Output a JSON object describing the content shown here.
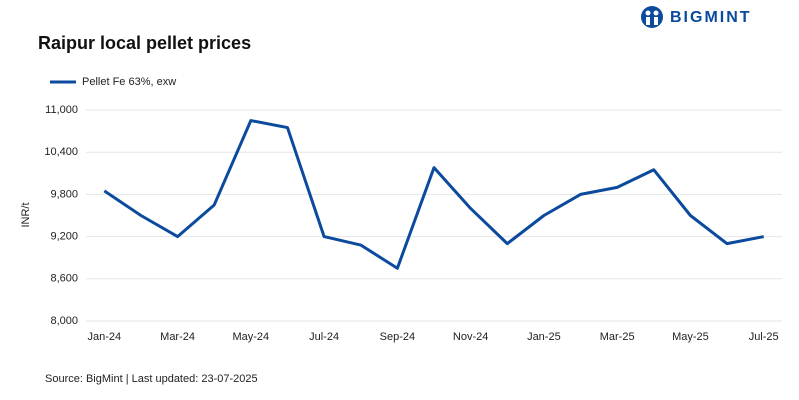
{
  "brand": "BIGMINT",
  "chart_data": {
    "type": "line",
    "title": "Raipur local pellet prices",
    "y_label": "INR/t",
    "source": "Source: BigMint | Last updated: 23-07-2025",
    "categories": [
      "Jan-24",
      null,
      "Mar-24",
      null,
      "May-24",
      null,
      "Jul-24",
      null,
      "Sep-24",
      null,
      "Nov-24",
      null,
      "Jan-25",
      null,
      "Mar-25",
      null,
      "May-25",
      null,
      "Jul-25"
    ],
    "series": [
      {
        "name": "Pellet Fe 63%, exw",
        "color": "#0b4a9c",
        "values": [
          9850,
          9500,
          9200,
          9650,
          10850,
          10750,
          9200,
          9080,
          8750,
          10180,
          9600,
          9100,
          9500,
          9800,
          9900,
          10150,
          9500,
          9100,
          9200
        ]
      }
    ],
    "ylim": [
      8000,
      11000
    ],
    "yticks": [
      {
        "value": 8000,
        "label": "8,000"
      },
      {
        "value": 8600,
        "label": "8,600"
      },
      {
        "value": 9200,
        "label": "9,200"
      },
      {
        "value": 9800,
        "label": "9,800"
      },
      {
        "value": 10400,
        "label": "10,400"
      },
      {
        "value": 11000,
        "label": "11,000"
      }
    ],
    "grid": true
  }
}
